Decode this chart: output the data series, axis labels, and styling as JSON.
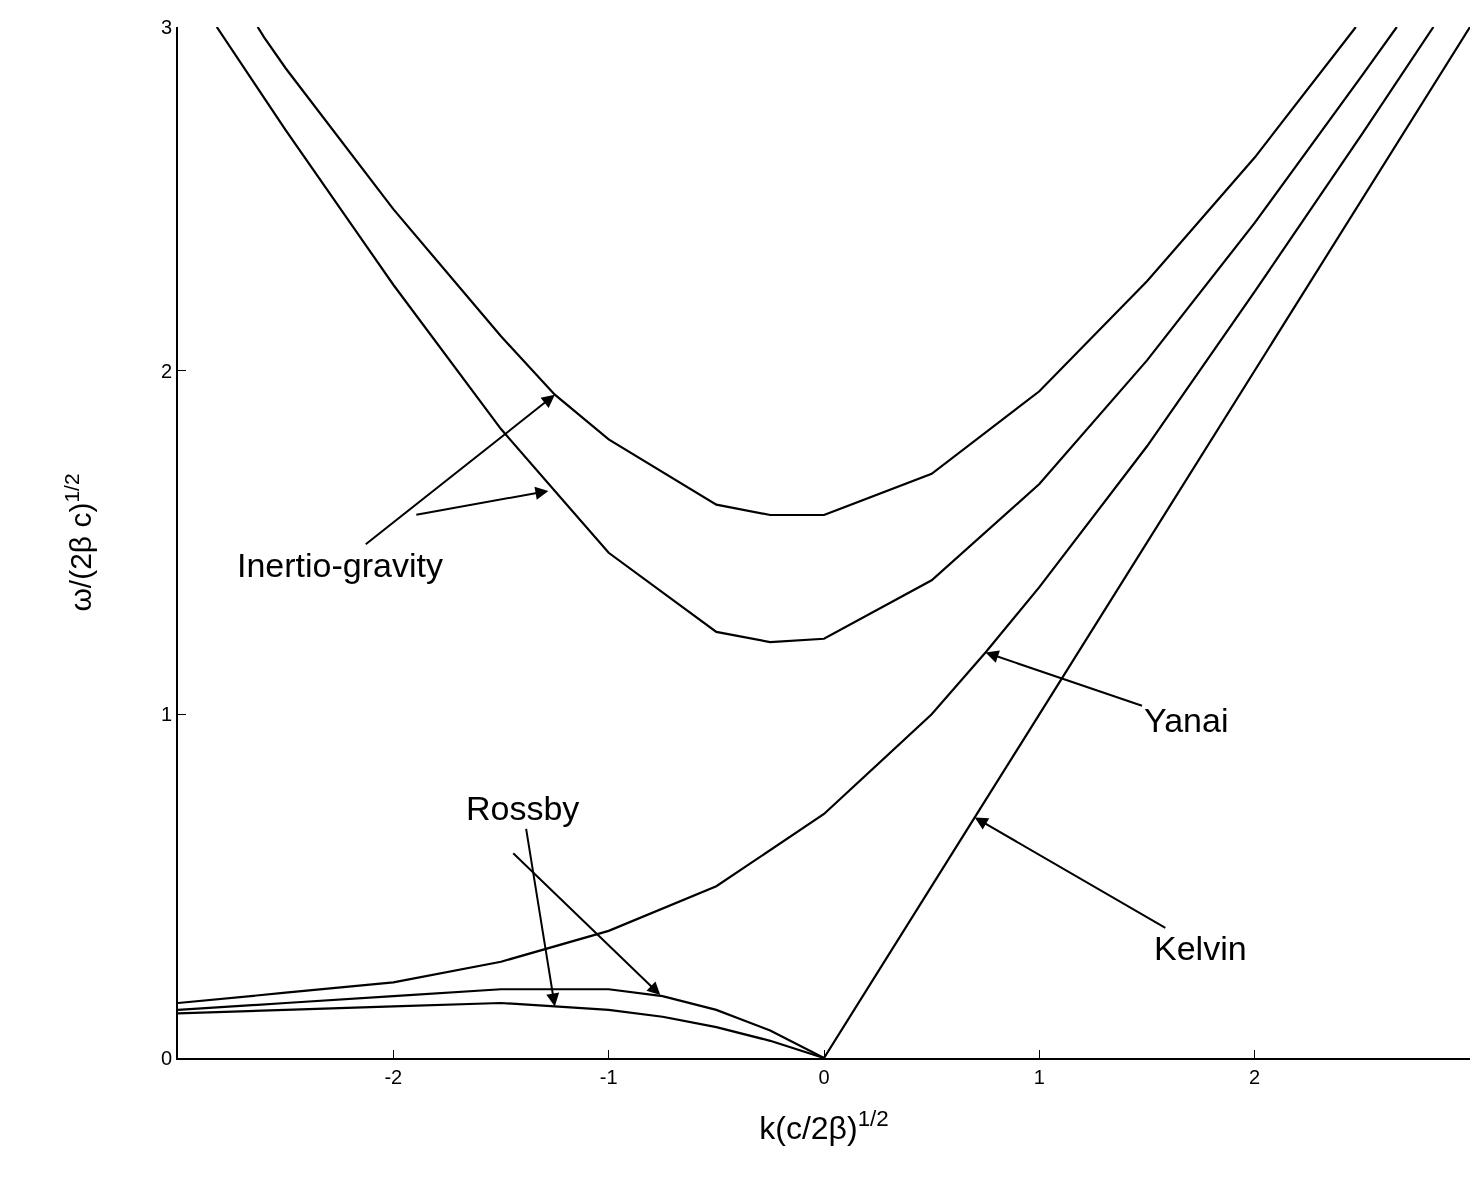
{
  "chart_data": {
    "type": "line",
    "xlabel": "k(c/2β)$^{1/2}$",
    "ylabel": "ω/(2β c)$^{1/2}$",
    "xlim": [
      -3,
      3
    ],
    "ylim": [
      0,
      3
    ],
    "xticks": [
      -2,
      -1,
      0,
      1,
      2
    ],
    "yticks": [
      0,
      1,
      2,
      3
    ],
    "grid": false,
    "series": [
      {
        "color": "#000000",
        "x": [
          -2.63,
          -2.6,
          -2.5,
          -2,
          -1.5,
          -1.25,
          -1,
          -0.5,
          -0.25,
          0,
          0.5,
          1,
          1.5,
          2,
          2.47
        ],
        "values": [
          3.0,
          2.97,
          2.88,
          2.47,
          2.1,
          1.93,
          1.8,
          1.61,
          1.58,
          1.58,
          1.7,
          1.94,
          2.26,
          2.62,
          3.0
        ]
      },
      {
        "color": "#000000",
        "x": [
          -2.82,
          -2.5,
          -2,
          -1.5,
          -1,
          -0.5,
          -0.25,
          0,
          0.5,
          1,
          1.5,
          2,
          2.5,
          2.66
        ],
        "values": [
          3.0,
          2.7,
          2.25,
          1.83,
          1.47,
          1.24,
          1.21,
          1.22,
          1.39,
          1.67,
          2.03,
          2.43,
          2.86,
          3.0
        ]
      },
      {
        "color": "#000000",
        "x": [
          -3,
          -2.5,
          -2,
          -1.5,
          -1,
          -0.5,
          0,
          0.5,
          0.75,
          1,
          1.5,
          2,
          2.5,
          2.83
        ],
        "values": [
          0.16,
          0.19,
          0.22,
          0.28,
          0.37,
          0.5,
          0.71,
          1.0,
          1.18,
          1.37,
          1.78,
          2.23,
          2.69,
          3.0
        ]
      },
      {
        "color": "#000000",
        "x": [
          0,
          0.7,
          3
        ],
        "values": [
          0,
          0.7,
          3
        ]
      },
      {
        "color": "#000000",
        "x": [
          -3,
          -2.5,
          -2,
          -1.5,
          -1.25,
          -1,
          -0.75,
          -0.5,
          -0.25,
          0
        ],
        "values": [
          0.14,
          0.16,
          0.18,
          0.2,
          0.2,
          0.2,
          0.18,
          0.14,
          0.08,
          0
        ]
      },
      {
        "color": "#000000",
        "x": [
          -3,
          -2.5,
          -2,
          -1.5,
          -1.25,
          -1,
          -0.75,
          -0.5,
          -0.25,
          0
        ],
        "values": [
          0.13,
          0.14,
          0.15,
          0.16,
          0.15,
          0.14,
          0.12,
          0.09,
          0.05,
          0
        ]
      }
    ],
    "annotations": [
      {
        "text": "Inertio-gravity",
        "x": -1.25,
        "y": 1.93
      },
      {
        "text": "Rossby",
        "x": -1.25,
        "y": 0.15
      },
      {
        "text": "Yanai",
        "x": 0.75,
        "y": 1.18
      },
      {
        "text": "Kelvin",
        "x": 0.7,
        "y": 0.7
      }
    ]
  }
}
